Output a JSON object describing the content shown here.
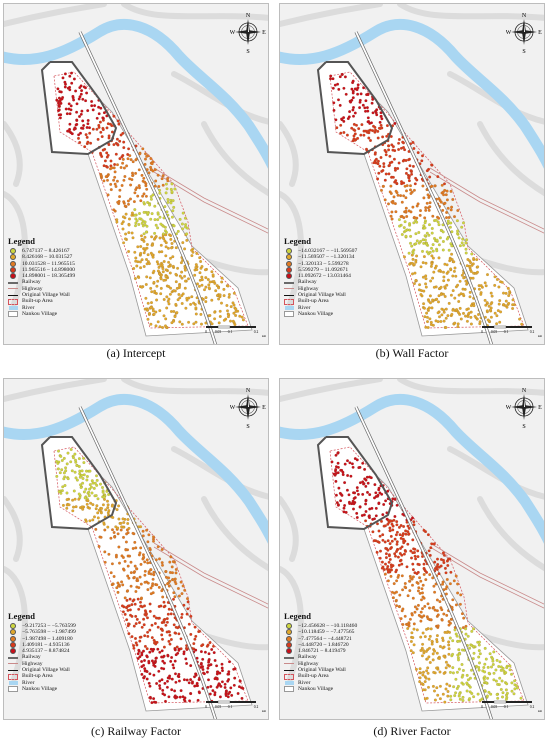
{
  "compass": {
    "n": "N",
    "s": "S",
    "e": "E",
    "w": "W"
  },
  "scale_bar": {
    "ticks": [
      "0",
      "0.05",
      "0.1",
      "0.2"
    ],
    "unit": "km"
  },
  "colors": {
    "background": "#f1f1f1",
    "river": "#a9d6f2",
    "railway": "#6a6a6a",
    "highway": "#c98a8a",
    "wall": "#555555",
    "builtup": "#d4545c",
    "classes": [
      "#cdd640",
      "#e0a82c",
      "#e07a22",
      "#d83a1c",
      "#c80f1a"
    ]
  },
  "legend_common": [
    {
      "label": "Railway",
      "type": "railway"
    },
    {
      "label": "Highway",
      "type": "highway"
    },
    {
      "label": "Original Village Wall",
      "type": "wall"
    },
    {
      "label": "Built-up Area",
      "type": "builtup"
    },
    {
      "label": "River",
      "type": "river"
    },
    {
      "label": "Nankou Village",
      "type": "village"
    }
  ],
  "panels": [
    {
      "caption": "(a) Intercept",
      "legend_title": "Legend",
      "classes": [
        "6.747137 – 8.426167",
        "8.426168 – 10.031527",
        "10.031528 – 11.965515",
        "11.965516 – 14.898000",
        "14.898001 – 18.365499"
      ]
    },
    {
      "caption": "(b) Wall Factor",
      "legend_title": "Legend",
      "classes": [
        "−14.032167 – −11.569507",
        "−11.569507 – −1.320134",
        "−1.320133 – 5.599278",
        "5.599279 – 11.092671",
        "11.092672 – 13.031464"
      ]
    },
    {
      "caption": "(c) Railway Factor",
      "legend_title": "Legend",
      "classes": [
        "−9.217253 – −5.763599",
        "−5.763598 – −1.987499",
        "−1.987498 – 1.409180",
        "1.409181 – 4.935136",
        "4.935137 – 8.874824"
      ]
    },
    {
      "caption": "(d) River Factor",
      "legend_title": "Legend",
      "classes": [
        "−12.456628 – −10.118460",
        "−10.118459 – −7.477565",
        "−7.477564 – −4.448721",
        "−4.448720 – 1.846720",
        "1.846721 – 8.419479"
      ]
    }
  ]
}
